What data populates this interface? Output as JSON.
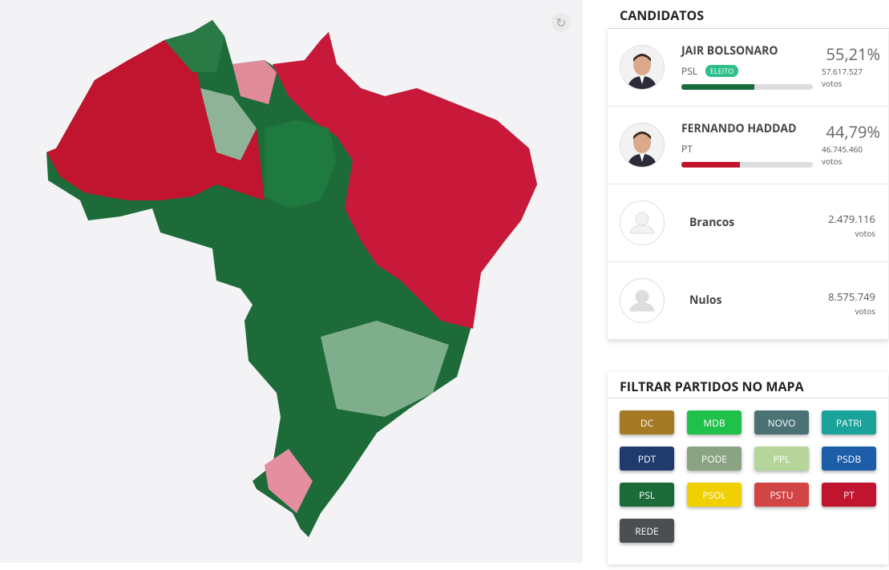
{
  "header": {
    "candidates_title": "CANDIDATOS",
    "filter_title": "FILTRAR PARTIDOS NO MAPA"
  },
  "candidates": [
    {
      "name": "JAIR BOLSONARO",
      "party": "PSL",
      "status": "ELEITO",
      "share": 55.21,
      "share_label": "55,21%",
      "votes": "57.617.527",
      "votes_unit": "votos",
      "bar_color": "#1b6b3a"
    },
    {
      "name": "FERNANDO HADDAD",
      "party": "PT",
      "share": 44.79,
      "share_label": "44,79%",
      "votes": "46.745.460",
      "votes_unit": "votos",
      "bar_color": "#c0142f"
    },
    {
      "name": "Brancos",
      "votes": "2.479.116",
      "votes_unit": "votos"
    },
    {
      "name": "Nulos",
      "votes": "8.575.749",
      "votes_unit": "votos"
    }
  ],
  "parties": [
    {
      "label": "DC",
      "color": "#a57a25"
    },
    {
      "label": "MDB",
      "color": "#1fc14a"
    },
    {
      "label": "NOVO",
      "color": "#4a7274"
    },
    {
      "label": "PATRI",
      "color": "#1aa39a"
    },
    {
      "label": "PDT",
      "color": "#1f3b6e"
    },
    {
      "label": "PODE",
      "color": "#8aa382"
    },
    {
      "label": "PPL",
      "color": "#b5d59a"
    },
    {
      "label": "PSDB",
      "color": "#1c5fa8"
    },
    {
      "label": "PSL",
      "color": "#1b6b3a"
    },
    {
      "label": "PSOL",
      "color": "#f0d000"
    },
    {
      "label": "PSTU",
      "color": "#d14545"
    },
    {
      "label": "PT",
      "color": "#c0142f"
    },
    {
      "label": "REDE",
      "color": "#4a4f52"
    }
  ]
}
